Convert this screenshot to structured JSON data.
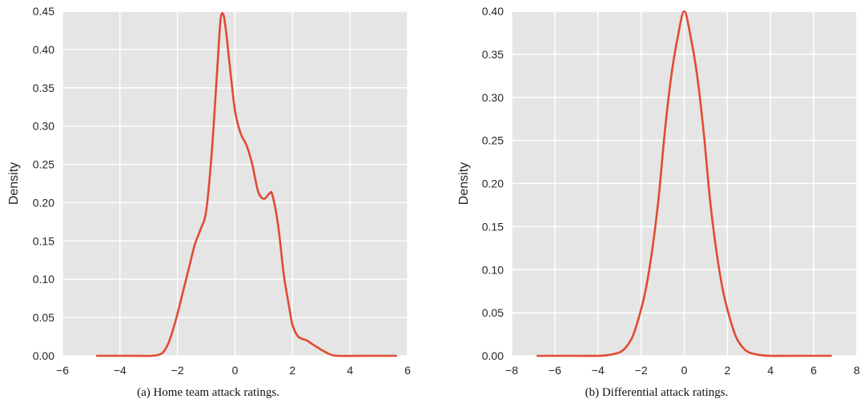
{
  "chart_data": [
    {
      "type": "line",
      "caption": "(a) Home team attack ratings.",
      "ylabel": "Density",
      "xlim": [
        -6,
        6
      ],
      "ylim": [
        0,
        0.45
      ],
      "xticks": [
        -6,
        -4,
        -2,
        0,
        2,
        4,
        6
      ],
      "xtick_labels": [
        "−6",
        "−4",
        "−2",
        "0",
        "2",
        "4",
        "6"
      ],
      "yticks": [
        0,
        0.05,
        0.1,
        0.15,
        0.2,
        0.25,
        0.3,
        0.35,
        0.4,
        0.45
      ],
      "ytick_labels": [
        "0.00",
        "0.05",
        "0.10",
        "0.15",
        "0.20",
        "0.25",
        "0.30",
        "0.35",
        "0.40",
        "0.45"
      ],
      "grid": true,
      "series": [
        {
          "color": "#e24a33",
          "x": [
            -4.8,
            -3.5,
            -2.9,
            -2.6,
            -2.45,
            -2.3,
            -2.15,
            -2.0,
            -1.8,
            -1.6,
            -1.4,
            -1.2,
            -1.0,
            -0.8,
            -0.6,
            -0.5,
            -0.4,
            -0.3,
            -0.2,
            0.0,
            0.2,
            0.4,
            0.6,
            0.8,
            1.0,
            1.2,
            1.3,
            1.5,
            1.7,
            1.9,
            2.0,
            2.2,
            2.5,
            2.7,
            3.0,
            3.3,
            3.6,
            4.5,
            5.6
          ],
          "y": [
            0.0,
            0.0,
            0.0,
            0.002,
            0.007,
            0.018,
            0.035,
            0.055,
            0.085,
            0.115,
            0.145,
            0.165,
            0.19,
            0.27,
            0.385,
            0.44,
            0.445,
            0.42,
            0.385,
            0.32,
            0.29,
            0.275,
            0.25,
            0.215,
            0.205,
            0.212,
            0.21,
            0.17,
            0.105,
            0.06,
            0.04,
            0.025,
            0.02,
            0.015,
            0.008,
            0.002,
            0.0,
            0.0,
            0.0
          ]
        }
      ]
    },
    {
      "type": "line",
      "caption": "(b) Differential attack ratings.",
      "ylabel": "Density",
      "xlim": [
        -8,
        8
      ],
      "ylim": [
        0,
        0.4
      ],
      "xticks": [
        -8,
        -6,
        -4,
        -2,
        0,
        2,
        4,
        6,
        8
      ],
      "xtick_labels": [
        "−8",
        "−6",
        "−4",
        "−2",
        "0",
        "2",
        "4",
        "6",
        "8"
      ],
      "yticks": [
        0,
        0.05,
        0.1,
        0.15,
        0.2,
        0.25,
        0.3,
        0.35,
        0.4
      ],
      "ytick_labels": [
        "0.00",
        "0.05",
        "0.10",
        "0.15",
        "0.20",
        "0.25",
        "0.30",
        "0.35",
        "0.40"
      ],
      "grid": true,
      "series": [
        {
          "color": "#e24a33",
          "x": [
            -6.8,
            -5.0,
            -4.0,
            -3.5,
            -3.0,
            -2.7,
            -2.4,
            -2.1,
            -1.8,
            -1.5,
            -1.2,
            -0.9,
            -0.6,
            -0.3,
            0.0,
            0.3,
            0.6,
            0.9,
            1.2,
            1.5,
            1.8,
            2.1,
            2.4,
            2.7,
            3.0,
            3.5,
            4.0,
            5.0,
            6.8
          ],
          "y": [
            0.0,
            0.0,
            0.0,
            0.001,
            0.004,
            0.01,
            0.022,
            0.045,
            0.075,
            0.12,
            0.18,
            0.26,
            0.325,
            0.37,
            0.4,
            0.37,
            0.325,
            0.26,
            0.18,
            0.12,
            0.075,
            0.045,
            0.022,
            0.01,
            0.004,
            0.001,
            0.0,
            0.0,
            0.0
          ]
        }
      ]
    }
  ]
}
